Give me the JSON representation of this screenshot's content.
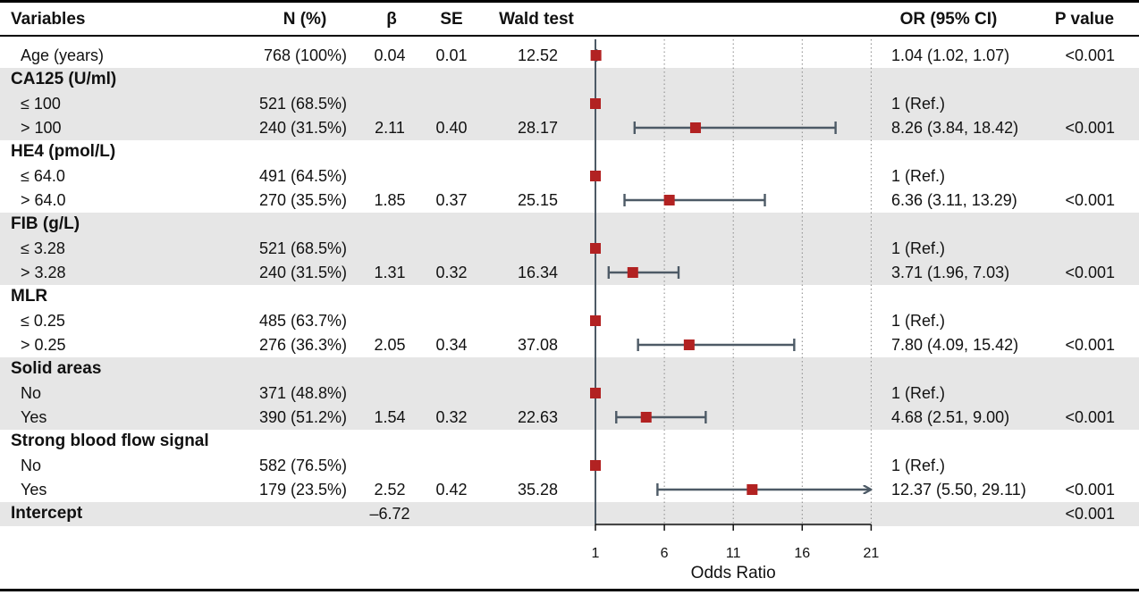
{
  "headers": {
    "variables": "Variables",
    "n": "N (%)",
    "beta": "β",
    "se": "SE",
    "wald": "Wald test",
    "or": "OR (95% CI)",
    "p": "P value"
  },
  "rows": [
    {
      "label": "Age (years)",
      "group": false,
      "shaded": false,
      "n": "768 (100%)",
      "beta": "0.04",
      "se": "0.01",
      "wald": "12.52",
      "or_text": "1.04 (1.02, 1.07)",
      "p": "<0.001"
    },
    {
      "label": "CA125 (U/ml)",
      "group": true,
      "shaded": true,
      "n": "",
      "beta": "",
      "se": "",
      "wald": "",
      "or_text": "",
      "p": ""
    },
    {
      "label": "≤ 100",
      "group": false,
      "shaded": true,
      "n": "521 (68.5%)",
      "beta": "",
      "se": "",
      "wald": "",
      "or_text": "1 (Ref.)",
      "p": ""
    },
    {
      "label": "> 100",
      "group": false,
      "shaded": true,
      "n": "240 (31.5%)",
      "beta": "2.11",
      "se": "0.40",
      "wald": "28.17",
      "or_text": "8.26 (3.84, 18.42)",
      "p": "<0.001"
    },
    {
      "label": "HE4 (pmol/L)",
      "group": true,
      "shaded": false,
      "n": "",
      "beta": "",
      "se": "",
      "wald": "",
      "or_text": "",
      "p": ""
    },
    {
      "label": "≤ 64.0",
      "group": false,
      "shaded": false,
      "n": "491 (64.5%)",
      "beta": "",
      "se": "",
      "wald": "",
      "or_text": "1 (Ref.)",
      "p": ""
    },
    {
      "label": "> 64.0",
      "group": false,
      "shaded": false,
      "n": "270 (35.5%)",
      "beta": "1.85",
      "se": "0.37",
      "wald": "25.15",
      "or_text": "6.36 (3.11, 13.29)",
      "p": "<0.001"
    },
    {
      "label": "FIB (g/L)",
      "group": true,
      "shaded": true,
      "n": "",
      "beta": "",
      "se": "",
      "wald": "",
      "or_text": "",
      "p": ""
    },
    {
      "label": "≤ 3.28",
      "group": false,
      "shaded": true,
      "n": "521 (68.5%)",
      "beta": "",
      "se": "",
      "wald": "",
      "or_text": "1 (Ref.)",
      "p": ""
    },
    {
      "label": "> 3.28",
      "group": false,
      "shaded": true,
      "n": "240 (31.5%)",
      "beta": "1.31",
      "se": "0.32",
      "wald": "16.34",
      "or_text": "3.71 (1.96, 7.03)",
      "p": "<0.001"
    },
    {
      "label": "MLR",
      "group": true,
      "shaded": false,
      "n": "",
      "beta": "",
      "se": "",
      "wald": "",
      "or_text": "",
      "p": ""
    },
    {
      "label": "≤ 0.25",
      "group": false,
      "shaded": false,
      "n": "485 (63.7%)",
      "beta": "",
      "se": "",
      "wald": "",
      "or_text": "1 (Ref.)",
      "p": ""
    },
    {
      "label": "> 0.25",
      "group": false,
      "shaded": false,
      "n": "276 (36.3%)",
      "beta": "2.05",
      "se": "0.34",
      "wald": "37.08",
      "or_text": "7.80 (4.09, 15.42)",
      "p": "<0.001"
    },
    {
      "label": "Solid areas",
      "group": true,
      "shaded": true,
      "n": "",
      "beta": "",
      "se": "",
      "wald": "",
      "or_text": "",
      "p": ""
    },
    {
      "label": "No",
      "group": false,
      "shaded": true,
      "n": "371 (48.8%)",
      "beta": "",
      "se": "",
      "wald": "",
      "or_text": "1 (Ref.)",
      "p": ""
    },
    {
      "label": "Yes",
      "group": false,
      "shaded": true,
      "n": "390 (51.2%)",
      "beta": "1.54",
      "se": "0.32",
      "wald": "22.63",
      "or_text": "4.68 (2.51, 9.00)",
      "p": "<0.001"
    },
    {
      "label": "Strong blood flow signal",
      "group": true,
      "shaded": false,
      "n": "",
      "beta": "",
      "se": "",
      "wald": "",
      "or_text": "",
      "p": ""
    },
    {
      "label": "No",
      "group": false,
      "shaded": false,
      "n": "582 (76.5%)",
      "beta": "",
      "se": "",
      "wald": "",
      "or_text": "1 (Ref.)",
      "p": ""
    },
    {
      "label": "Yes",
      "group": false,
      "shaded": false,
      "n": "179 (23.5%)",
      "beta": "2.52",
      "se": "0.42",
      "wald": "35.28",
      "or_text": "12.37 (5.50, 29.11)",
      "p": "<0.001"
    },
    {
      "label": "Intercept",
      "group": true,
      "shaded": true,
      "n": "",
      "beta": "–6.72",
      "se": "",
      "wald": "",
      "or_text": "",
      "p": "<0.001"
    }
  ],
  "chart_data": {
    "type": "forest",
    "xlabel": "Odds Ratio",
    "xlim": [
      1,
      21
    ],
    "xticks": [
      1,
      6,
      11,
      16,
      21
    ],
    "tick_labels": [
      "1",
      "6",
      "11",
      "16",
      "21"
    ],
    "reference_line": 1,
    "gridlines": "dotted at 6, 11, 16, 21",
    "points": [
      {
        "row": 0,
        "or": 1.04,
        "lo": 1.02,
        "hi": 1.07
      },
      {
        "row": 2,
        "or": 1,
        "ref": true
      },
      {
        "row": 3,
        "or": 8.26,
        "lo": 3.84,
        "hi": 18.42
      },
      {
        "row": 5,
        "or": 1,
        "ref": true
      },
      {
        "row": 6,
        "or": 6.36,
        "lo": 3.11,
        "hi": 13.29
      },
      {
        "row": 8,
        "or": 1,
        "ref": true
      },
      {
        "row": 9,
        "or": 3.71,
        "lo": 1.96,
        "hi": 7.03
      },
      {
        "row": 11,
        "or": 1,
        "ref": true
      },
      {
        "row": 12,
        "or": 7.8,
        "lo": 4.09,
        "hi": 15.42
      },
      {
        "row": 14,
        "or": 1,
        "ref": true
      },
      {
        "row": 15,
        "or": 4.68,
        "lo": 2.51,
        "hi": 9.0
      },
      {
        "row": 17,
        "or": 1,
        "ref": true
      },
      {
        "row": 18,
        "or": 12.37,
        "lo": 5.5,
        "hi": 29.11
      }
    ],
    "colors": {
      "marker": "#b22222",
      "ci_line": "#4d5a66",
      "axis": "#4d5a66",
      "shade": "#e6e6e6"
    }
  }
}
